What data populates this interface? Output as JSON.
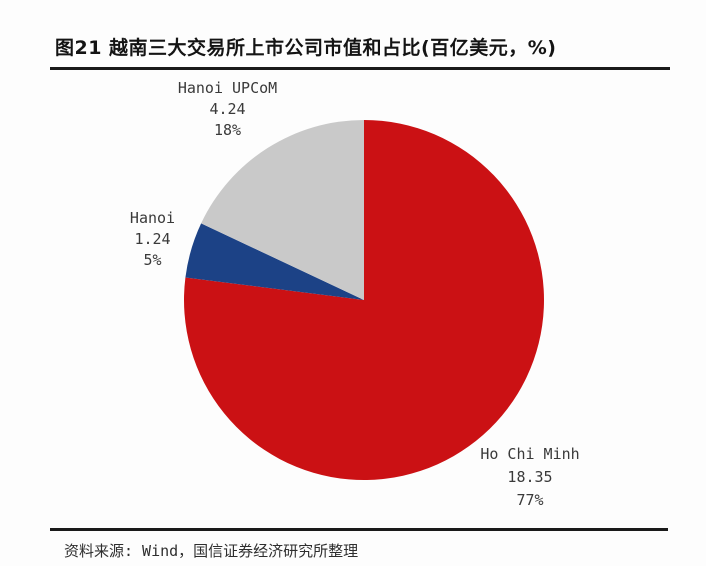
{
  "header": {
    "title": "图21  越南三大交易所上市公司市值和占比(百亿美元，%)"
  },
  "chart_data": {
    "type": "pie",
    "title": "越南三大交易所上市公司市值和占比",
    "unit": "百亿美元，%",
    "start_angle_deg": 0,
    "direction": "clockwise",
    "legend_position": "none",
    "slices": [
      {
        "label": "Ho Chi Minh",
        "value": 18.35,
        "value_label": "18.35",
        "percent": 77,
        "percent_label": "77%",
        "color": "#cb1114"
      },
      {
        "label": "Hanoi",
        "value": 1.24,
        "value_label": "1.24",
        "percent": 5,
        "percent_label": "5%",
        "color": "#1c4286"
      },
      {
        "label": "Hanoi UPCoM",
        "value": 4.24,
        "value_label": "4.24",
        "percent": 18,
        "percent_label": "18%",
        "color": "#c9c9c9"
      }
    ]
  },
  "footer": {
    "source": "资料来源: Wind，国信证券经济研究所整理"
  }
}
